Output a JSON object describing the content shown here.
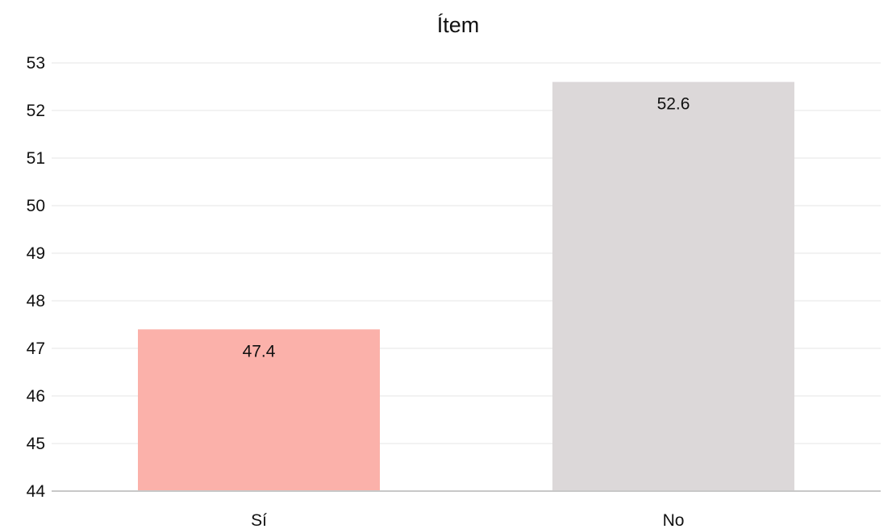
{
  "chart_data": {
    "type": "bar",
    "title": "Ítem",
    "xlabel": "",
    "ylabel": "",
    "categories": [
      "Sí",
      "No"
    ],
    "values": [
      47.4,
      52.6
    ],
    "data_labels": [
      "47.4",
      "52.6"
    ],
    "bar_colors": [
      "#fbb1aa",
      "#dcd8d9"
    ],
    "ylim": [
      44,
      53
    ],
    "yticks": [
      44,
      45,
      46,
      47,
      48,
      49,
      50,
      51,
      52,
      53
    ],
    "ytick_labels": [
      "44",
      "45",
      "46",
      "47",
      "48",
      "49",
      "50",
      "51",
      "52",
      "53"
    ],
    "grid": true,
    "legend": "none"
  }
}
